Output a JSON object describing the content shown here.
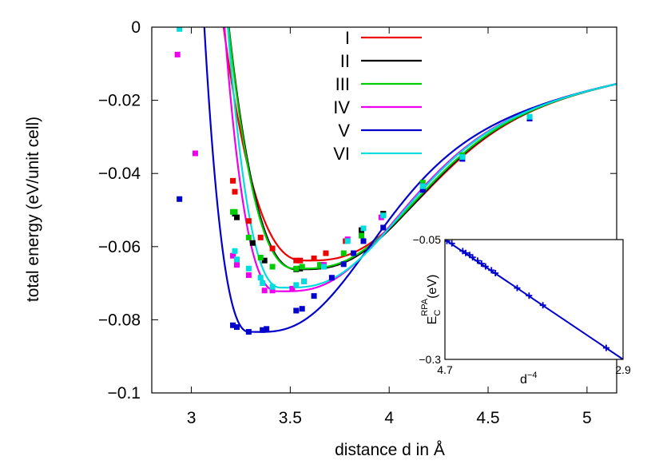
{
  "chart_data": [
    {
      "type": "line",
      "xlabel": "distance d in Å",
      "ylabel": "total energy (eV/unit cell)",
      "xlim": [
        2.8,
        5.15
      ],
      "ylim": [
        -0.1,
        0.0
      ],
      "xticks": [
        "3",
        "3.5",
        "4",
        "4.5",
        "5"
      ],
      "yticks": [
        "0",
        "-0.02",
        "-0.04",
        "-0.06",
        "-0.08",
        "-0.1"
      ],
      "legend_position": "top-center",
      "series": [
        {
          "name": "I",
          "color": "#ee0000",
          "curve": {
            "d0": 3.56,
            "emin": -0.0638,
            "width": 0.56,
            "exp": 4.0
          },
          "points": [
            [
              3.21,
              -0.042
            ],
            [
              3.22,
              -0.045
            ],
            [
              3.29,
              -0.053
            ],
            [
              3.35,
              -0.0575
            ],
            [
              3.41,
              -0.0605
            ],
            [
              3.53,
              -0.0638
            ],
            [
              3.55,
              -0.0638
            ],
            [
              3.62,
              -0.0632
            ],
            [
              3.68,
              -0.0618
            ],
            [
              3.78,
              -0.0585
            ],
            [
              3.97,
              -0.051
            ]
          ]
        },
        {
          "name": "II",
          "color": "#000000",
          "curve": {
            "d0": 3.53,
            "emin": -0.0662,
            "width": 0.485,
            "exp": 4.2
          },
          "points": [
            [
              3.22,
              -0.051
            ],
            [
              3.23,
              -0.052
            ],
            [
              3.31,
              -0.059
            ],
            [
              3.37,
              -0.0638
            ],
            [
              3.53,
              -0.0662
            ],
            [
              3.55,
              -0.066
            ],
            [
              3.66,
              -0.065
            ],
            [
              3.86,
              -0.0555
            ],
            [
              3.97,
              -0.051
            ]
          ]
        },
        {
          "name": "III",
          "color": "#00cc00",
          "curve": {
            "d0": 3.52,
            "emin": -0.066,
            "width": 0.475,
            "exp": 4.3
          },
          "points": [
            [
              3.21,
              -0.0505
            ],
            [
              3.22,
              -0.0505
            ],
            [
              3.29,
              -0.0575
            ],
            [
              3.35,
              -0.063
            ],
            [
              3.41,
              -0.0655
            ],
            [
              3.53,
              -0.066
            ],
            [
              3.56,
              -0.0655
            ],
            [
              3.65,
              -0.065
            ],
            [
              3.77,
              -0.0618
            ],
            [
              3.86,
              -0.057
            ],
            [
              3.97,
              -0.0515
            ],
            [
              4.17,
              -0.0425
            ],
            [
              4.37,
              -0.035
            ]
          ]
        },
        {
          "name": "IV",
          "color": "#ee00ee",
          "curve": {
            "d0": 3.43,
            "emin": -0.0722,
            "width": 0.38,
            "exp": 4.55
          },
          "points": [
            [
              2.93,
              -0.0075
            ],
            [
              3.02,
              -0.0345
            ],
            [
              3.21,
              -0.0625
            ],
            [
              3.23,
              -0.065
            ],
            [
              3.29,
              -0.0678
            ],
            [
              3.37,
              -0.072
            ],
            [
              3.41,
              -0.072
            ],
            [
              3.51,
              -0.0715
            ],
            [
              3.57,
              -0.0695
            ],
            [
              3.67,
              -0.065
            ],
            [
              3.79,
              -0.058
            ],
            [
              3.96,
              -0.052
            ],
            [
              4.17,
              -0.0435
            ],
            [
              4.37,
              -0.036
            ],
            [
              4.71,
              -0.025
            ]
          ]
        },
        {
          "name": "V",
          "color": "#0000cc",
          "curve": {
            "d0": 3.29,
            "emin": -0.0833,
            "width": 0.33,
            "exp": 4.9
          },
          "points": [
            [
              2.94,
              -0.047
            ],
            [
              3.21,
              -0.0815
            ],
            [
              3.23,
              -0.082
            ],
            [
              3.29,
              -0.0833
            ],
            [
              3.36,
              -0.0828
            ],
            [
              3.38,
              -0.0825
            ],
            [
              3.53,
              -0.0775
            ],
            [
              3.56,
              -0.077
            ],
            [
              3.62,
              -0.0735
            ],
            [
              3.71,
              -0.0685
            ],
            [
              3.77,
              -0.0648
            ],
            [
              3.82,
              -0.0618
            ],
            [
              3.87,
              -0.0585
            ],
            [
              3.97,
              -0.0548
            ],
            [
              4.17,
              -0.0445
            ],
            [
              4.37,
              -0.036
            ],
            [
              4.71,
              -0.025
            ]
          ]
        },
        {
          "name": "VI",
          "color": "#00dddd",
          "curve": {
            "d0": 3.45,
            "emin": -0.0712,
            "width": 0.385,
            "exp": 4.55
          },
          "points": [
            [
              2.94,
              -0.0005
            ],
            [
              3.22,
              -0.0612
            ],
            [
              3.23,
              -0.0635
            ],
            [
              3.29,
              -0.066
            ],
            [
              3.35,
              -0.0685
            ],
            [
              3.36,
              -0.07
            ],
            [
              3.41,
              -0.071
            ],
            [
              3.53,
              -0.0705
            ],
            [
              3.57,
              -0.0695
            ],
            [
              3.67,
              -0.0655
            ],
            [
              3.79,
              -0.0585
            ],
            [
              3.87,
              -0.055
            ],
            [
              3.97,
              -0.0515
            ],
            [
              4.17,
              -0.0435
            ],
            [
              4.37,
              -0.0355
            ],
            [
              4.71,
              -0.0245
            ]
          ]
        }
      ]
    },
    {
      "type": "line",
      "inset": true,
      "xlabel": "d",
      "xlabel_sup": "−4",
      "ylabel_main": "E",
      "ylabel_sub": "C",
      "ylabel_sup": "RPA",
      "ylabel_unit": "(eV)",
      "xticks": [
        "4.7",
        "2.9"
      ],
      "yticks": [
        "−0.05",
        "−0.3"
      ],
      "xlim": [
        4.7,
        2.9
      ],
      "ylim": [
        -0.3,
        -0.05
      ],
      "color": "#0000cc",
      "line": [
        [
          4.7,
          -0.05
        ],
        [
          2.9,
          -0.3
        ]
      ],
      "points": [
        [
          4.68,
          -0.053
        ],
        [
          4.63,
          -0.058
        ],
        [
          4.52,
          -0.074
        ],
        [
          4.49,
          -0.078
        ],
        [
          4.45,
          -0.082
        ],
        [
          4.42,
          -0.087
        ],
        [
          4.37,
          -0.094
        ],
        [
          4.33,
          -0.1
        ],
        [
          4.29,
          -0.106
        ],
        [
          4.23,
          -0.114
        ],
        [
          4.19,
          -0.12
        ],
        [
          3.97,
          -0.151
        ],
        [
          3.85,
          -0.167
        ],
        [
          3.71,
          -0.187
        ],
        [
          3.07,
          -0.276
        ]
      ]
    }
  ]
}
